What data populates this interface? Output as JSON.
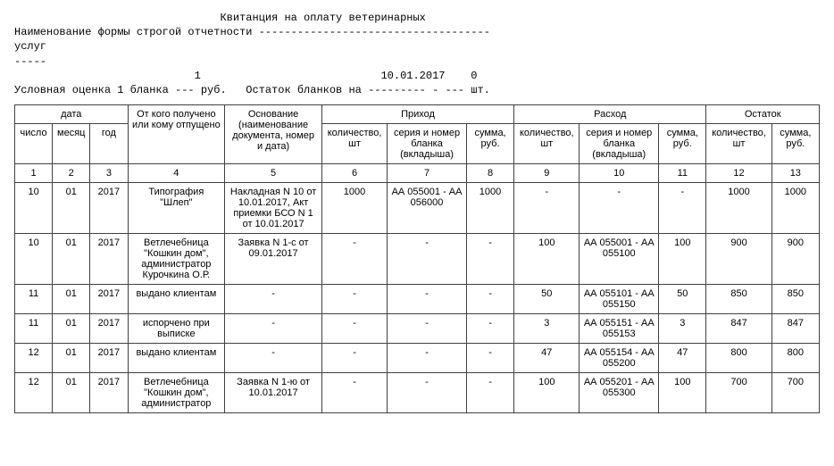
{
  "header": {
    "title_line": "                                Квитанция на оплату ветеринарных",
    "form_name_line": "Наименование формы строгой отчетности ------------------------------------",
    "uslug_line": "услуг",
    "dashes_line": "-----",
    "val_date_line": "                            1                            10.01.2017    0",
    "rate_line": "Условная оценка 1 бланка --- руб.   Остаток бланков на --------- - --- шт."
  },
  "table": {
    "group_headers": {
      "date": "дата",
      "from": "От кого получено или кому отпущено",
      "basis": "Основание (наименование документа, номер и дата)",
      "income": "Приход",
      "expense": "Расход",
      "balance": "Остаток"
    },
    "sub_headers": {
      "day": "число",
      "month": "месяц",
      "year": "год",
      "qty": "количество, шт",
      "serial": "серия и номер бланка (вкладыша)",
      "sum": "сумма, руб."
    },
    "index_row": [
      "1",
      "2",
      "3",
      "4",
      "5",
      "6",
      "7",
      "8",
      "9",
      "10",
      "11",
      "12",
      "13"
    ],
    "rows": [
      {
        "day": "10",
        "month": "01",
        "year": "2017",
        "from": "Типография \"Шлеп\"",
        "basis": "Накладная N 10 от 10.01.2017, Акт приемки БСО N 1 от 10.01.2017",
        "in_qty": "1000",
        "in_ser": "АА 055001 - АА 056000",
        "in_sum": "1000",
        "ex_qty": "-",
        "ex_ser": "-",
        "ex_sum": "-",
        "bal_qty": "1000",
        "bal_sum": "1000"
      },
      {
        "day": "10",
        "month": "01",
        "year": "2017",
        "from": "Ветлечебница \"Кошкин дом\", администратор Курочкина О.Р.",
        "basis": "Заявка N 1-с от 09.01.2017",
        "in_qty": "-",
        "in_ser": "-",
        "in_sum": "-",
        "ex_qty": "100",
        "ex_ser": "АА 055001 - АА 055100",
        "ex_sum": "100",
        "bal_qty": "900",
        "bal_sum": "900"
      },
      {
        "day": "11",
        "month": "01",
        "year": "2017",
        "from": "выдано клиентам",
        "basis": "-",
        "in_qty": "-",
        "in_ser": "-",
        "in_sum": "-",
        "ex_qty": "50",
        "ex_ser": "АА 055101 - АА 055150",
        "ex_sum": "50",
        "bal_qty": "850",
        "bal_sum": "850"
      },
      {
        "day": "11",
        "month": "01",
        "year": "2017",
        "from": "испорчено при выписке",
        "basis": "-",
        "in_qty": "-",
        "in_ser": "-",
        "in_sum": "-",
        "ex_qty": "3",
        "ex_ser": "АА 055151 - АА 055153",
        "ex_sum": "3",
        "bal_qty": "847",
        "bal_sum": "847"
      },
      {
        "day": "12",
        "month": "01",
        "year": "2017",
        "from": "выдано клиентам",
        "basis": "-",
        "in_qty": "-",
        "in_ser": "-",
        "in_sum": "-",
        "ex_qty": "47",
        "ex_ser": "АА 055154 - АА 055200",
        "ex_sum": "47",
        "bal_qty": "800",
        "bal_sum": "800"
      },
      {
        "day": "12",
        "month": "01",
        "year": "2017",
        "from": "Ветлечебница \"Кошкин дом\", администратор",
        "basis": "Заявка N 1-ю от 10.01.2017",
        "in_qty": "-",
        "in_ser": "-",
        "in_sum": "-",
        "ex_qty": "100",
        "ex_ser": "АА 055201 - АА 055300",
        "ex_sum": "100",
        "bal_qty": "700",
        "bal_sum": "700"
      }
    ]
  }
}
